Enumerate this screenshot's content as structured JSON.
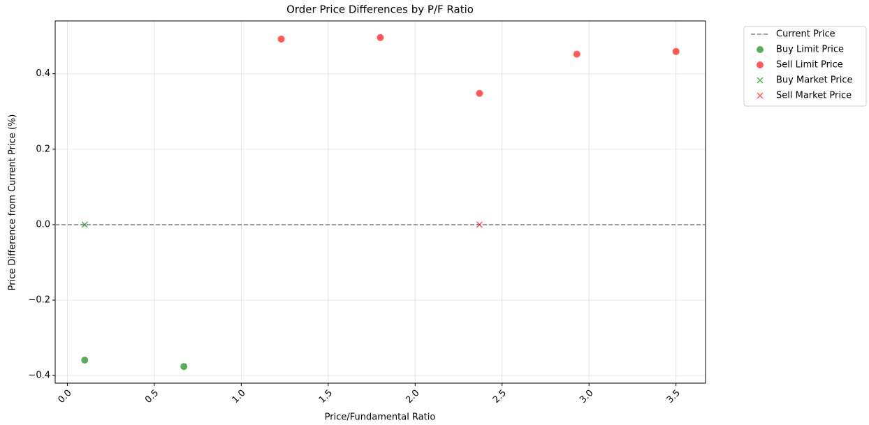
{
  "chart_data": {
    "type": "scatter",
    "title": "Order Price Differences by P/F Ratio",
    "x_label": "Price/Fundamental Ratio",
    "y_label": "Price Difference from Current Price (%)",
    "xlim": [
      -0.07,
      3.67
    ],
    "ylim": [
      -0.42,
      0.54
    ],
    "xticks": [
      {
        "value": 0,
        "label": "0.0"
      },
      {
        "value": 0.5,
        "label": "0.5"
      },
      {
        "value": 1,
        "label": "1.0"
      },
      {
        "value": 1.5,
        "label": "1.5"
      },
      {
        "value": 2,
        "label": "2.0"
      },
      {
        "value": 2.5,
        "label": "2.5"
      },
      {
        "value": 3,
        "label": "3.0"
      },
      {
        "value": 3.5,
        "label": "3.5"
      }
    ],
    "yticks": [
      {
        "value": -0.4,
        "label": "−0.4"
      },
      {
        "value": -0.2,
        "label": "−0.2"
      },
      {
        "value": 0,
        "label": "0.0"
      },
      0.2,
      0.4
    ],
    "grid": true,
    "legend": "outside-upper-right",
    "hline": {
      "name": "Current Price",
      "value": 0,
      "color": "#808080"
    },
    "series": [
      {
        "name": "Buy Limit Price",
        "color": "#008000",
        "marker": "o",
        "x": [
          0.1,
          0.67
        ],
        "values": [
          -0.359,
          -0.376
        ]
      },
      {
        "name": "Sell Limit Price",
        "color": "#ff0000",
        "marker": "o",
        "x": [
          1.23,
          1.8,
          2.37,
          2.93,
          3.5
        ],
        "values": [
          0.492,
          0.496,
          0.348,
          0.452,
          0.459
        ]
      },
      {
        "name": "Buy Market Price",
        "color": "#008000",
        "marker": "x",
        "x": [
          0.1
        ],
        "values": [
          0
        ]
      },
      {
        "name": "Sell Market Price",
        "color": "#ff0000",
        "marker": "x",
        "x": [
          2.37
        ],
        "values": [
          0
        ]
      }
    ]
  }
}
